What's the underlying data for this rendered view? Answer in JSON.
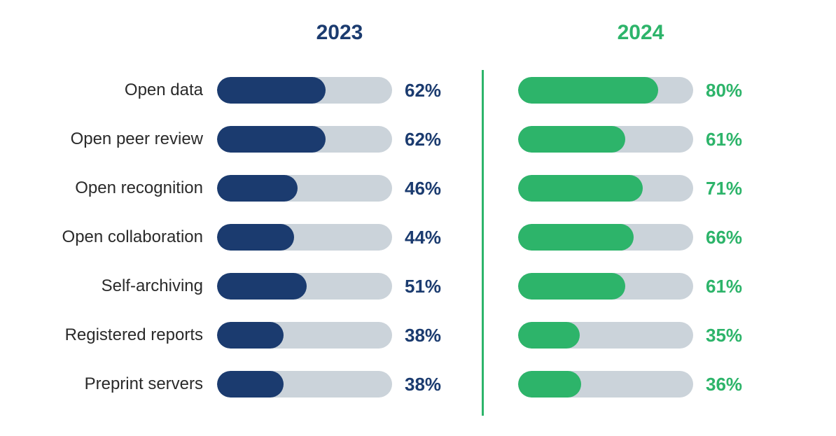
{
  "chart": {
    "type": "horizontal-progress-bars",
    "background_color": "#ffffff",
    "years": {
      "y2023": {
        "label": "2023",
        "color": "#1b3b6f",
        "header_fontsize": 30,
        "header_fontweight": 700
      },
      "y2024": {
        "label": "2024",
        "color": "#2db46a",
        "header_fontsize": 30,
        "header_fontweight": 700
      }
    },
    "bar_track_color": "#cbd3da",
    "bar_track_width": 250,
    "bar_track_height": 38,
    "bar_radius": 19,
    "label_color": "#2a2a2a",
    "label_fontsize": 24,
    "pct_fontsize": 26,
    "pct_fontweight": 700,
    "divider_color": "#2db46a",
    "divider_width": 3,
    "rows": [
      {
        "label": "Open data",
        "y2023": {
          "value": 62,
          "display": "62%"
        },
        "y2024": {
          "value": 80,
          "display": "80%"
        }
      },
      {
        "label": "Open peer review",
        "y2023": {
          "value": 62,
          "display": "62%"
        },
        "y2024": {
          "value": 61,
          "display": "61%"
        }
      },
      {
        "label": "Open recognition",
        "y2023": {
          "value": 46,
          "display": "46%"
        },
        "y2024": {
          "value": 71,
          "display": "71%"
        }
      },
      {
        "label": "Open collaboration",
        "y2023": {
          "value": 44,
          "display": "44%"
        },
        "y2024": {
          "value": 66,
          "display": "66%"
        }
      },
      {
        "label": "Self-archiving",
        "y2023": {
          "value": 51,
          "display": "51%"
        },
        "y2024": {
          "value": 61,
          "display": "61%"
        }
      },
      {
        "label": "Registered reports",
        "y2023": {
          "value": 38,
          "display": "38%"
        },
        "y2024": {
          "value": 35,
          "display": "35%"
        }
      },
      {
        "label": "Preprint servers",
        "y2023": {
          "value": 38,
          "display": "38%"
        },
        "y2024": {
          "value": 36,
          "display": "36%"
        }
      }
    ]
  }
}
